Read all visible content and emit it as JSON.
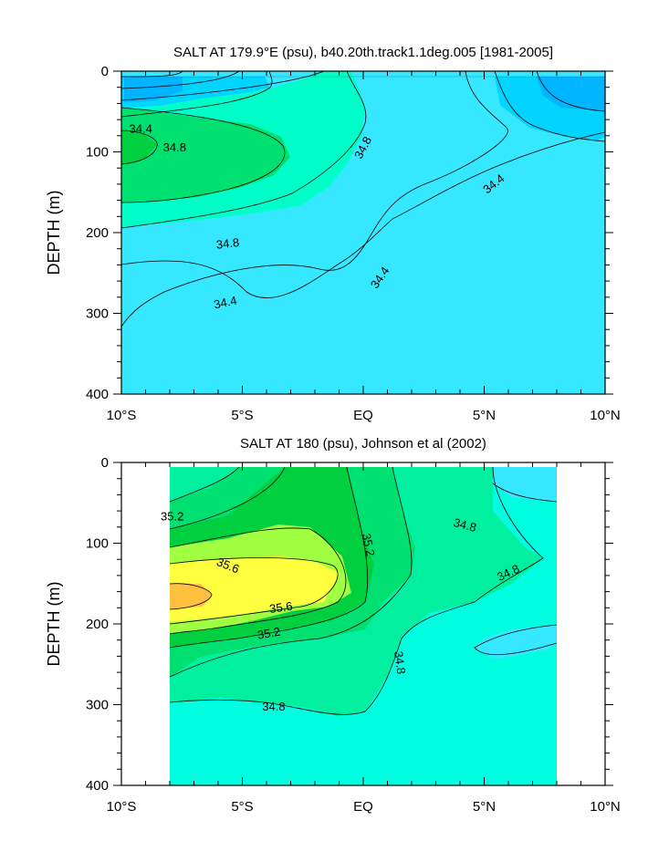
{
  "chart_data": [
    {
      "type": "contour",
      "title": "SALT AT 179.9°E (psu), b40.20th.track1.1deg.005 [1981-2005]",
      "ylabel": "DEPTH (m)",
      "xlabel": "",
      "x_ticks": [
        {
          "lat": -10,
          "label": "10°S"
        },
        {
          "lat": -5,
          "label": "5°S"
        },
        {
          "lat": 0,
          "label": "EQ"
        },
        {
          "lat": 5,
          "label": "5°N"
        },
        {
          "lat": 10,
          "label": "10°N"
        }
      ],
      "y_ticks": [
        {
          "depth": 0,
          "label": "0"
        },
        {
          "depth": 100,
          "label": "100"
        },
        {
          "depth": 200,
          "label": "200"
        },
        {
          "depth": 300,
          "label": "300"
        },
        {
          "depth": 400,
          "label": "400"
        }
      ],
      "xlim": [
        -10,
        10
      ],
      "ylim": [
        0,
        400
      ],
      "data_extent": {
        "lat": [
          -10,
          10
        ],
        "depth": [
          0,
          400
        ]
      },
      "colors": {
        "low": "#00b4ff",
        "mid_low": "#00d4ff",
        "mid": "#36e8ff",
        "mid_high": "#00ffc8",
        "high": "#00e070",
        "max": "#00d040"
      },
      "contour_labels": [
        {
          "lat": -9.2,
          "depth": 72,
          "label": "34.4",
          "angle": 0
        },
        {
          "lat": -7.8,
          "depth": 95,
          "label": "34.8",
          "angle": 0
        },
        {
          "lat": 0.0,
          "depth": 95,
          "label": "34.8",
          "angle": -62
        },
        {
          "lat": 5.4,
          "depth": 140,
          "label": "34.4",
          "angle": -38
        },
        {
          "lat": -5.6,
          "depth": 214,
          "label": "34.8",
          "angle": -6
        },
        {
          "lat": -5.7,
          "depth": 287,
          "label": "34.4",
          "angle": -12
        },
        {
          "lat": 0.7,
          "depth": 256,
          "label": "34.4",
          "angle": -55
        }
      ]
    },
    {
      "type": "contour",
      "title": "SALT AT 180 (psu), Johnson et al (2002)",
      "ylabel": "DEPTH (m)",
      "xlabel": "",
      "x_ticks": [
        {
          "lat": -10,
          "label": "10°S"
        },
        {
          "lat": -5,
          "label": "5°S"
        },
        {
          "lat": 0,
          "label": "EQ"
        },
        {
          "lat": 5,
          "label": "5°N"
        },
        {
          "lat": 10,
          "label": "10°N"
        }
      ],
      "y_ticks": [
        {
          "depth": 0,
          "label": "0"
        },
        {
          "depth": 100,
          "label": "100"
        },
        {
          "depth": 200,
          "label": "200"
        },
        {
          "depth": 300,
          "label": "300"
        },
        {
          "depth": 400,
          "label": "400"
        }
      ],
      "xlim": [
        -10,
        10
      ],
      "ylim": [
        0,
        400
      ],
      "data_extent": {
        "lat": [
          -8,
          8
        ],
        "depth": [
          5,
          400
        ]
      },
      "colors": {
        "low": "#00ffe0",
        "mid": "#00f0a0",
        "mid_high": "#00e070",
        "high": "#00d040",
        "warm": "#a0ff40",
        "yellow": "#ffff40",
        "orange": "#ffc040"
      },
      "contour_labels": [
        {
          "lat": -7.9,
          "depth": 67,
          "label": "35.2",
          "angle": 0
        },
        {
          "lat": -5.6,
          "depth": 128,
          "label": "35.6",
          "angle": 22
        },
        {
          "lat": 0.2,
          "depth": 102,
          "label": "35.2",
          "angle": 78
        },
        {
          "lat": 4.2,
          "depth": 78,
          "label": "34.8",
          "angle": 15
        },
        {
          "lat": 6.0,
          "depth": 137,
          "label": "34.8",
          "angle": -25
        },
        {
          "lat": -3.4,
          "depth": 180,
          "label": "35.6",
          "angle": -8
        },
        {
          "lat": -3.9,
          "depth": 212,
          "label": "35.2",
          "angle": -10
        },
        {
          "lat": 1.5,
          "depth": 248,
          "label": "34.8",
          "angle": 82
        },
        {
          "lat": -3.7,
          "depth": 303,
          "label": "34.8",
          "angle": 0
        }
      ]
    }
  ]
}
